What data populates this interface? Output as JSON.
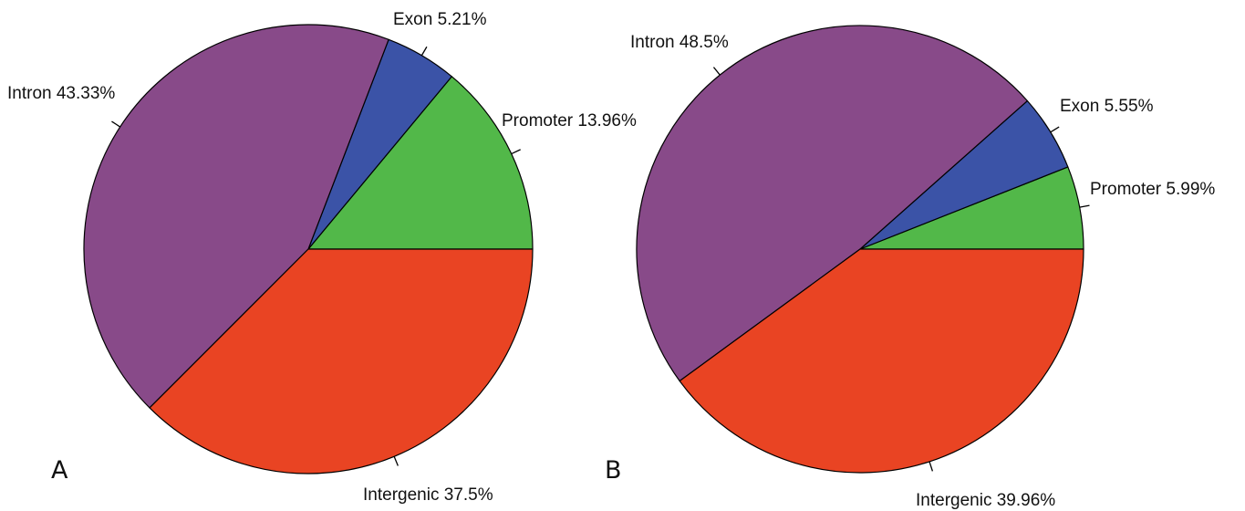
{
  "chart_data": [
    {
      "type": "pie",
      "panel": "A",
      "slices": [
        {
          "label": "Promoter",
          "value": 13.96,
          "text": "Promoter 13.96%",
          "color": "#52b849"
        },
        {
          "label": "Exon",
          "value": 5.21,
          "text": "Exon 5.21%",
          "color": "#3b53a7"
        },
        {
          "label": "Intron",
          "value": 43.33,
          "text": "Intron 43.33%",
          "color": "#884a89"
        },
        {
          "label": "Intergenic",
          "value": 37.5,
          "text": "Intergenic 37.5%",
          "color": "#e94423"
        }
      ]
    },
    {
      "type": "pie",
      "panel": "B",
      "slices": [
        {
          "label": "Promoter",
          "value": 5.99,
          "text": "Promoter 5.99%",
          "color": "#52b849"
        },
        {
          "label": "Exon",
          "value": 5.55,
          "text": "Exon 5.55%",
          "color": "#3b53a7"
        },
        {
          "label": "Intron",
          "value": 48.5,
          "text": "Intron 48.5%",
          "color": "#884a89"
        },
        {
          "label": "Intergenic",
          "value": 39.96,
          "text": "Intergenic 39.96%",
          "color": "#e94423"
        }
      ]
    }
  ]
}
